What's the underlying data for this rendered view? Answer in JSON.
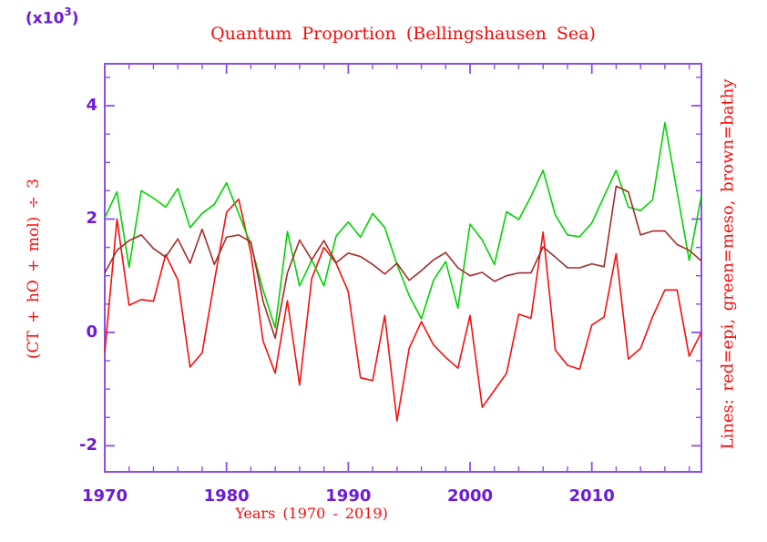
{
  "chart_data": {
    "type": "line",
    "title": "Quantum Proportion (Bellingshausen Sea)",
    "xlabel": "Years (1970 - 2019)",
    "ylabel": "(CT + hO + mol) ÷ 3",
    "right_label": "Lines: red=epi, green=meso, brown=bathy",
    "y_multiplier": {
      "base": "(x10",
      "exp": "3",
      "close": ")"
    },
    "xlim": [
      1970,
      2019
    ],
    "ylim": [
      -2.46,
      4.74
    ],
    "x_major_ticks": [
      1970,
      1980,
      1990,
      2000,
      2010
    ],
    "x_minor_step": 2,
    "y_major_ticks": [
      4,
      2,
      0,
      -2
    ],
    "y_minor_step": 0.5,
    "grid": false,
    "legend_position": "right-axis-label",
    "x": [
      1970,
      1971,
      1972,
      1973,
      1974,
      1975,
      1976,
      1977,
      1978,
      1979,
      1980,
      1981,
      1982,
      1983,
      1984,
      1985,
      1986,
      1987,
      1988,
      1989,
      1990,
      1991,
      1992,
      1993,
      1994,
      1995,
      1996,
      1997,
      1998,
      1999,
      2000,
      2001,
      2002,
      2003,
      2004,
      2005,
      2006,
      2007,
      2008,
      2009,
      2010,
      2011,
      2012,
      2013,
      2014,
      2015,
      2016,
      2017,
      2018,
      2019
    ],
    "series": [
      {
        "name": "epi",
        "color_key": "epi",
        "values": [
          -0.35,
          2.0,
          0.48,
          0.58,
          0.55,
          1.37,
          0.93,
          -0.61,
          -0.36,
          0.9,
          2.12,
          2.35,
          1.4,
          -0.15,
          -0.72,
          0.56,
          -0.93,
          0.95,
          1.5,
          1.22,
          0.72,
          -0.8,
          -0.85,
          0.3,
          -1.56,
          -0.28,
          0.19,
          -0.22,
          -0.44,
          -0.63,
          0.3,
          -1.32,
          -1.02,
          -0.72,
          0.32,
          0.25,
          1.77,
          -0.31,
          -0.58,
          -0.65,
          0.13,
          0.27,
          1.39,
          -0.47,
          -0.28,
          0.28,
          0.75,
          0.75,
          -0.42,
          0.0
        ]
      },
      {
        "name": "meso",
        "color_key": "meso",
        "values": [
          2.02,
          2.48,
          1.15,
          2.5,
          2.37,
          2.21,
          2.54,
          1.85,
          2.1,
          2.26,
          2.64,
          2.1,
          1.55,
          0.75,
          0.08,
          1.78,
          0.82,
          1.28,
          0.82,
          1.7,
          1.95,
          1.68,
          2.1,
          1.85,
          1.2,
          0.65,
          0.24,
          0.92,
          1.25,
          0.43,
          1.91,
          1.63,
          1.2,
          2.13,
          1.99,
          2.4,
          2.86,
          2.07,
          1.72,
          1.69,
          1.93,
          2.4,
          2.86,
          2.21,
          2.15,
          2.34,
          3.7,
          2.48,
          1.27,
          2.42
        ]
      },
      {
        "name": "bathy",
        "color_key": "bathy",
        "values": [
          1.05,
          1.45,
          1.62,
          1.72,
          1.48,
          1.33,
          1.65,
          1.22,
          1.82,
          1.2,
          1.68,
          1.72,
          1.6,
          0.55,
          -0.1,
          1.05,
          1.63,
          1.28,
          1.62,
          1.23,
          1.4,
          1.34,
          1.2,
          1.03,
          1.22,
          0.92,
          1.09,
          1.28,
          1.41,
          1.14,
          1.0,
          1.06,
          0.9,
          1.0,
          1.05,
          1.05,
          1.51,
          1.33,
          1.14,
          1.14,
          1.21,
          1.16,
          2.58,
          2.48,
          1.72,
          1.79,
          1.79,
          1.55,
          1.45,
          1.26
        ]
      }
    ]
  },
  "colors": {
    "epi": "#fb0d0d",
    "meso": "#00d400",
    "bathy": "#a52a2a",
    "axis": "#8a4fe8",
    "tick_text": "#6e1bd8",
    "label_text": "#fa0a0a",
    "background": "#ffffff"
  }
}
